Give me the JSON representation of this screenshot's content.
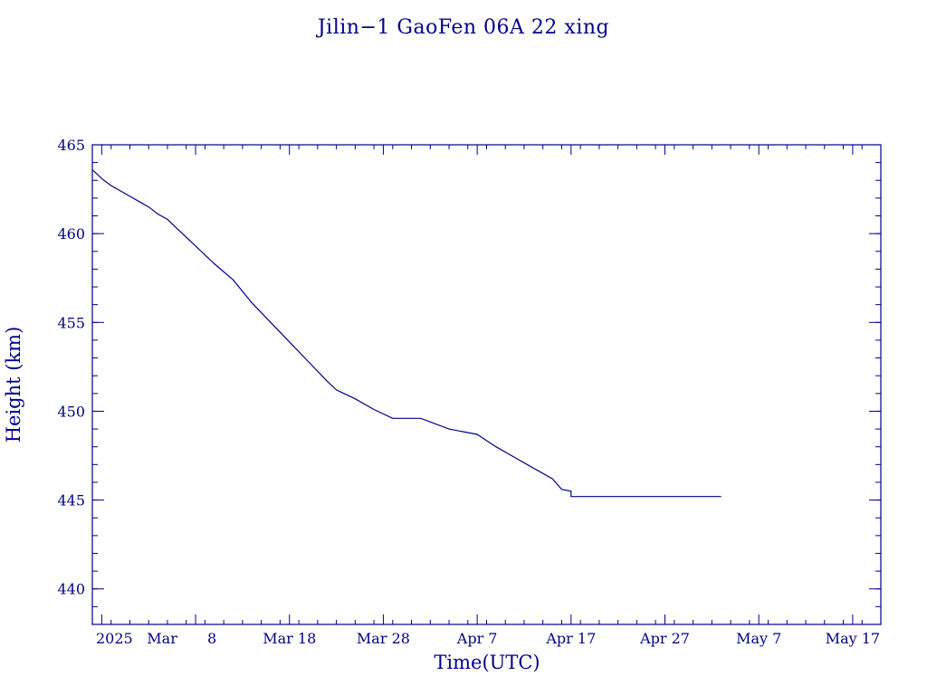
{
  "chart_data": {
    "type": "line",
    "title": "Jilin−1 GaoFen 06A 22 xing",
    "xlabel": "Time(UTC)",
    "ylabel": "Height (km)",
    "xlim": [
      "2025-02-25",
      "2025-05-20"
    ],
    "ylim": [
      438,
      465
    ],
    "x_ticks": [
      {
        "date": "2025-02-26",
        "label": "2025"
      },
      {
        "date": "2025-03-08",
        "label": "Mar  8"
      },
      {
        "date": "2025-03-18",
        "label": "Mar 18"
      },
      {
        "date": "2025-03-28",
        "label": "Mar 28"
      },
      {
        "date": "2025-04-07",
        "label": "Apr  7"
      },
      {
        "date": "2025-04-17",
        "label": "Apr 17"
      },
      {
        "date": "2025-04-27",
        "label": "Apr 27"
      },
      {
        "date": "2025-05-07",
        "label": "May  7"
      },
      {
        "date": "2025-05-17",
        "label": "May 17"
      }
    ],
    "y_ticks": [
      440,
      445,
      450,
      455,
      460,
      465
    ],
    "colors": {
      "axis": "#00008b",
      "line": "#00008b",
      "background": "#ffffff"
    },
    "series": [
      {
        "x": [
          "2025-02-25",
          "2025-02-26",
          "2025-02-27",
          "2025-02-28",
          "2025-03-01",
          "2025-03-02",
          "2025-03-03",
          "2025-03-04",
          "2025-03-05",
          "2025-03-06",
          "2025-03-07",
          "2025-03-08",
          "2025-03-09",
          "2025-03-10",
          "2025-03-12",
          "2025-03-14",
          "2025-03-16",
          "2025-03-18",
          "2025-03-20",
          "2025-03-22",
          "2025-03-23",
          "2025-03-25",
          "2025-03-27",
          "2025-03-29",
          "2025-04-01",
          "2025-04-04",
          "2025-04-07",
          "2025-04-09",
          "2025-04-11",
          "2025-04-13",
          "2025-04-15",
          "2025-04-16",
          "2025-04-17",
          "2025-04-17",
          "2025-04-18",
          "2025-04-20",
          "2025-04-22",
          "2025-04-24",
          "2025-04-26",
          "2025-04-28",
          "2025-04-30",
          "2025-05-02",
          "2025-05-03"
        ],
        "y": [
          463.6,
          463.1,
          462.7,
          462.4,
          462.1,
          461.8,
          461.5,
          461.1,
          460.8,
          460.3,
          459.8,
          459.3,
          458.8,
          458.3,
          457.4,
          456.1,
          455.0,
          453.9,
          452.8,
          451.7,
          451.2,
          450.7,
          450.1,
          449.6,
          449.6,
          449.0,
          448.7,
          448.0,
          447.4,
          446.8,
          446.2,
          445.6,
          445.5,
          445.2,
          445.2,
          445.2,
          445.2,
          445.2,
          445.2,
          445.2,
          445.2,
          445.2,
          445.2
        ]
      }
    ]
  }
}
